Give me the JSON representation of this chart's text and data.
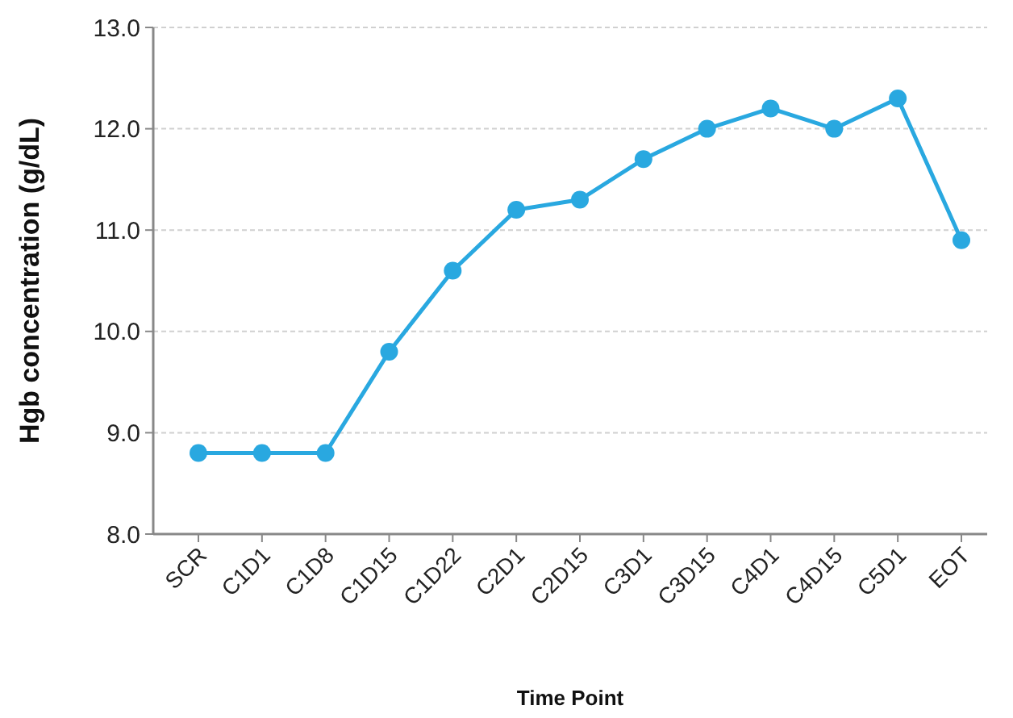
{
  "chart_data": {
    "type": "line",
    "xlabel": "Time Point",
    "ylabel": "Hgb concentration (g/dL)",
    "categories": [
      "SCR",
      "C1D1",
      "C1D8",
      "C1D15",
      "C1D22",
      "C2D1",
      "C2D15",
      "C3D1",
      "C3D15",
      "C4D1",
      "C4D15",
      "C5D1",
      "EOT"
    ],
    "series": [
      {
        "color": "#29a8e0",
        "values": [
          8.8,
          8.8,
          8.8,
          9.8,
          10.6,
          11.2,
          11.3,
          11.7,
          12.0,
          12.2,
          12.0,
          12.3,
          10.9
        ]
      }
    ],
    "ylim": [
      8,
      13
    ],
    "yticks": [
      {
        "value": 8,
        "label": "8.0"
      },
      {
        "value": 9,
        "label": "9.0"
      },
      {
        "value": 10,
        "label": "10.0"
      },
      {
        "value": 11,
        "label": "11.0"
      },
      {
        "value": 12,
        "label": "12.0"
      },
      {
        "value": 13,
        "label": "13.0"
      }
    ],
    "grid": "y",
    "marker": "circle",
    "line_style": "solid"
  }
}
